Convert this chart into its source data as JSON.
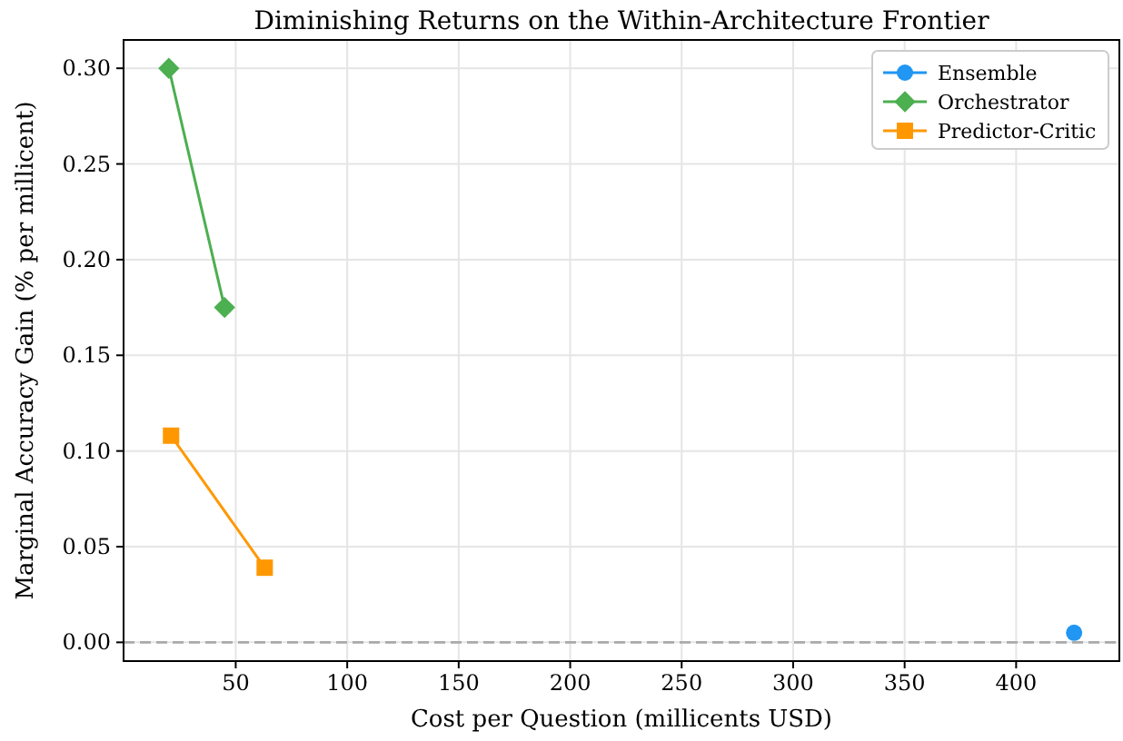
{
  "chart_data": {
    "type": "line",
    "title": "Diminishing Returns on the Within-Architecture Frontier",
    "xlabel": "Cost per Question (millicents USD)",
    "ylabel": "Marginal Accuracy Gain (% per millicent)",
    "series": [
      {
        "name": "Ensemble",
        "color": "#2196f3",
        "marker": "circle",
        "x": [
          426
        ],
        "values": [
          0.005
        ]
      },
      {
        "name": "Orchestrator",
        "color": "#4caf50",
        "marker": "diamond",
        "x": [
          20,
          45
        ],
        "values": [
          0.3,
          0.175
        ]
      },
      {
        "name": "Predictor-Critic",
        "color": "#ff9800",
        "marker": "square",
        "x": [
          21,
          63
        ],
        "values": [
          0.108,
          0.039
        ]
      }
    ],
    "xlim": [
      -0.3,
      446.3
    ],
    "xticks": [
      50,
      100,
      150,
      200,
      250,
      300,
      350,
      400
    ],
    "ylim": [
      -0.0098,
      0.3148
    ],
    "yticks": [
      {
        "value": 0,
        "label": "0.00"
      },
      {
        "value": 0.05,
        "label": "0.05"
      },
      {
        "value": 0.1,
        "label": "0.10"
      },
      {
        "value": 0.15,
        "label": "0.15"
      },
      {
        "value": 0.2,
        "label": "0.20"
      },
      {
        "value": 0.25,
        "label": "0.25"
      },
      {
        "value": 0.3,
        "label": "0.30"
      }
    ],
    "ref_lines": [
      {
        "axis": "y",
        "value": 0,
        "color": "#aaaaaa",
        "line_style": "dashed"
      }
    ],
    "grid": true,
    "legend": "top right",
    "line_style": "solid"
  }
}
